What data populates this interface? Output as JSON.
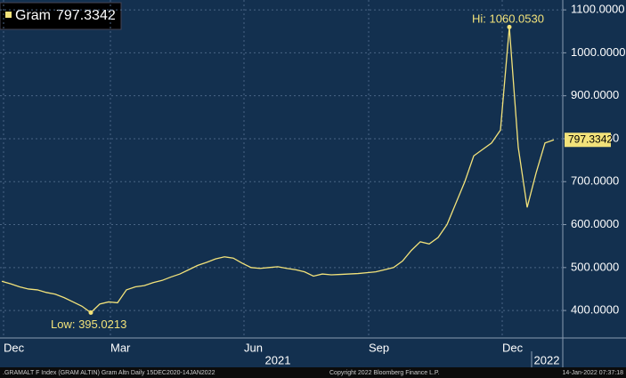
{
  "chart_data": {
    "type": "line",
    "categories": [
      null,
      "Dec",
      null,
      null,
      null,
      null,
      null,
      null,
      null,
      null,
      null,
      null,
      null,
      "Mar",
      null,
      null,
      null,
      null,
      null,
      null,
      null,
      null,
      null,
      null,
      null,
      null,
      null,
      null,
      "Jun",
      null,
      null,
      null,
      null,
      null,
      null,
      null,
      null,
      null,
      null,
      null,
      null,
      null,
      "Sep",
      null,
      null,
      null,
      null,
      null,
      null,
      null,
      null,
      null,
      null,
      null,
      null,
      null,
      null,
      "Dec",
      null,
      null,
      null,
      null,
      null
    ],
    "x_groups": [
      "2021",
      "2022"
    ],
    "series": [
      {
        "name": "Gram",
        "color": "#f2e27a",
        "values": [
          468,
          462,
          455,
          450,
          448,
          442,
          438,
          430,
          420,
          410,
          395.0213,
          415,
          420,
          418,
          448,
          455,
          458,
          465,
          470,
          478,
          485,
          495,
          505,
          512,
          520,
          525,
          522,
          510,
          500,
          498,
          500,
          502,
          498,
          495,
          490,
          480,
          485,
          483,
          484,
          485,
          486,
          488,
          490,
          495,
          500,
          515,
          540,
          560,
          555,
          570,
          600,
          650,
          700,
          760,
          775,
          790,
          820,
          1060.053,
          780,
          640,
          720,
          790,
          797.3342
        ]
      }
    ],
    "legend_value": "797.3342",
    "last_label": "797.3342",
    "annotations": [
      {
        "text": "Hi: 1060.0530",
        "index": 57
      },
      {
        "text": "Low: 395.0213",
        "index": 10
      }
    ],
    "ylim": [
      336,
      1123
    ],
    "yticks": [
      {
        "value": 400,
        "label": "400.0000"
      },
      {
        "value": 500,
        "label": "500.0000"
      },
      {
        "value": 600,
        "label": "600.0000"
      },
      {
        "value": 700,
        "label": "700.0000"
      },
      {
        "value": 800,
        "label": "800.0000"
      },
      {
        "value": 900,
        "label": "900.0000"
      },
      {
        "value": 1000,
        "label": "1000.0000"
      },
      {
        "value": 1100,
        "label": "1100.0000"
      }
    ],
    "grid": true,
    "footer": {
      "source": ".GRAMALT F Index (GRAM ALTIN) Gram Altn  Daily 15DEC2020-14JAN2022",
      "copyright": "Copyright 2022 Bloomberg Finance L.P.",
      "timestamp": "14-Jan-2022 07:37:18"
    }
  }
}
